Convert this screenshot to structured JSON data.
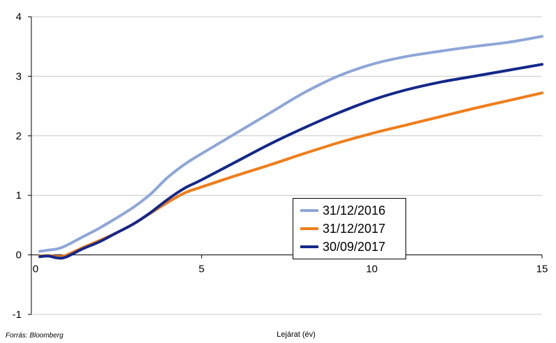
{
  "source_note": "Forrás: Bloomberg",
  "chart_data": {
    "type": "line",
    "title": "",
    "xlabel": "Lejárat (év)",
    "ylabel": "",
    "xlim": [
      0,
      15
    ],
    "ylim": [
      -1,
      4
    ],
    "x_ticks": [
      "0",
      "5",
      "10",
      "15"
    ],
    "y_ticks": [
      "-1",
      "0",
      "1",
      "2",
      "3",
      "4"
    ],
    "grid": "horizontal",
    "legend_position": "bottom-center-right",
    "series": [
      {
        "name": "31/12/2016",
        "color": "#8ea6d8",
        "points": [
          [
            0.25,
            0.06
          ],
          [
            0.5,
            0.08
          ],
          [
            0.75,
            0.1
          ],
          [
            1,
            0.15
          ],
          [
            1.5,
            0.3
          ],
          [
            2,
            0.45
          ],
          [
            2.5,
            0.62
          ],
          [
            3,
            0.8
          ],
          [
            3.5,
            1.02
          ],
          [
            4,
            1.3
          ],
          [
            4.5,
            1.52
          ],
          [
            5,
            1.7
          ],
          [
            6,
            2.04
          ],
          [
            7,
            2.38
          ],
          [
            8,
            2.72
          ],
          [
            9,
            3.0
          ],
          [
            10,
            3.2
          ],
          [
            11,
            3.33
          ],
          [
            12,
            3.42
          ],
          [
            13,
            3.5
          ],
          [
            14,
            3.57
          ],
          [
            15,
            3.67
          ]
        ]
      },
      {
        "name": "31/12/2017",
        "color": "#f07d1a",
        "points": [
          [
            0.25,
            -0.02
          ],
          [
            0.5,
            -0.01
          ],
          [
            0.75,
            -0.03
          ],
          [
            1,
            -0.01
          ],
          [
            1.5,
            0.12
          ],
          [
            2,
            0.24
          ],
          [
            2.5,
            0.37
          ],
          [
            3,
            0.52
          ],
          [
            3.5,
            0.7
          ],
          [
            4,
            0.88
          ],
          [
            4.5,
            1.04
          ],
          [
            5,
            1.14
          ],
          [
            6,
            1.33
          ],
          [
            7,
            1.51
          ],
          [
            8,
            1.7
          ],
          [
            9,
            1.88
          ],
          [
            10,
            2.04
          ],
          [
            11,
            2.18
          ],
          [
            12,
            2.32
          ],
          [
            13,
            2.46
          ],
          [
            14,
            2.59
          ],
          [
            15,
            2.72
          ]
        ]
      },
      {
        "name": "30/09/2017",
        "color": "#14288a",
        "points": [
          [
            0.25,
            -0.03
          ],
          [
            0.5,
            -0.02
          ],
          [
            0.75,
            -0.05
          ],
          [
            1,
            -0.04
          ],
          [
            1.5,
            0.1
          ],
          [
            2,
            0.22
          ],
          [
            2.5,
            0.37
          ],
          [
            3,
            0.52
          ],
          [
            3.5,
            0.71
          ],
          [
            4,
            0.93
          ],
          [
            4.5,
            1.12
          ],
          [
            5,
            1.26
          ],
          [
            6,
            1.56
          ],
          [
            7,
            1.86
          ],
          [
            8,
            2.13
          ],
          [
            9,
            2.38
          ],
          [
            10,
            2.6
          ],
          [
            11,
            2.77
          ],
          [
            12,
            2.9
          ],
          [
            13,
            3.0
          ],
          [
            14,
            3.1
          ],
          [
            15,
            3.2
          ]
        ]
      }
    ]
  }
}
